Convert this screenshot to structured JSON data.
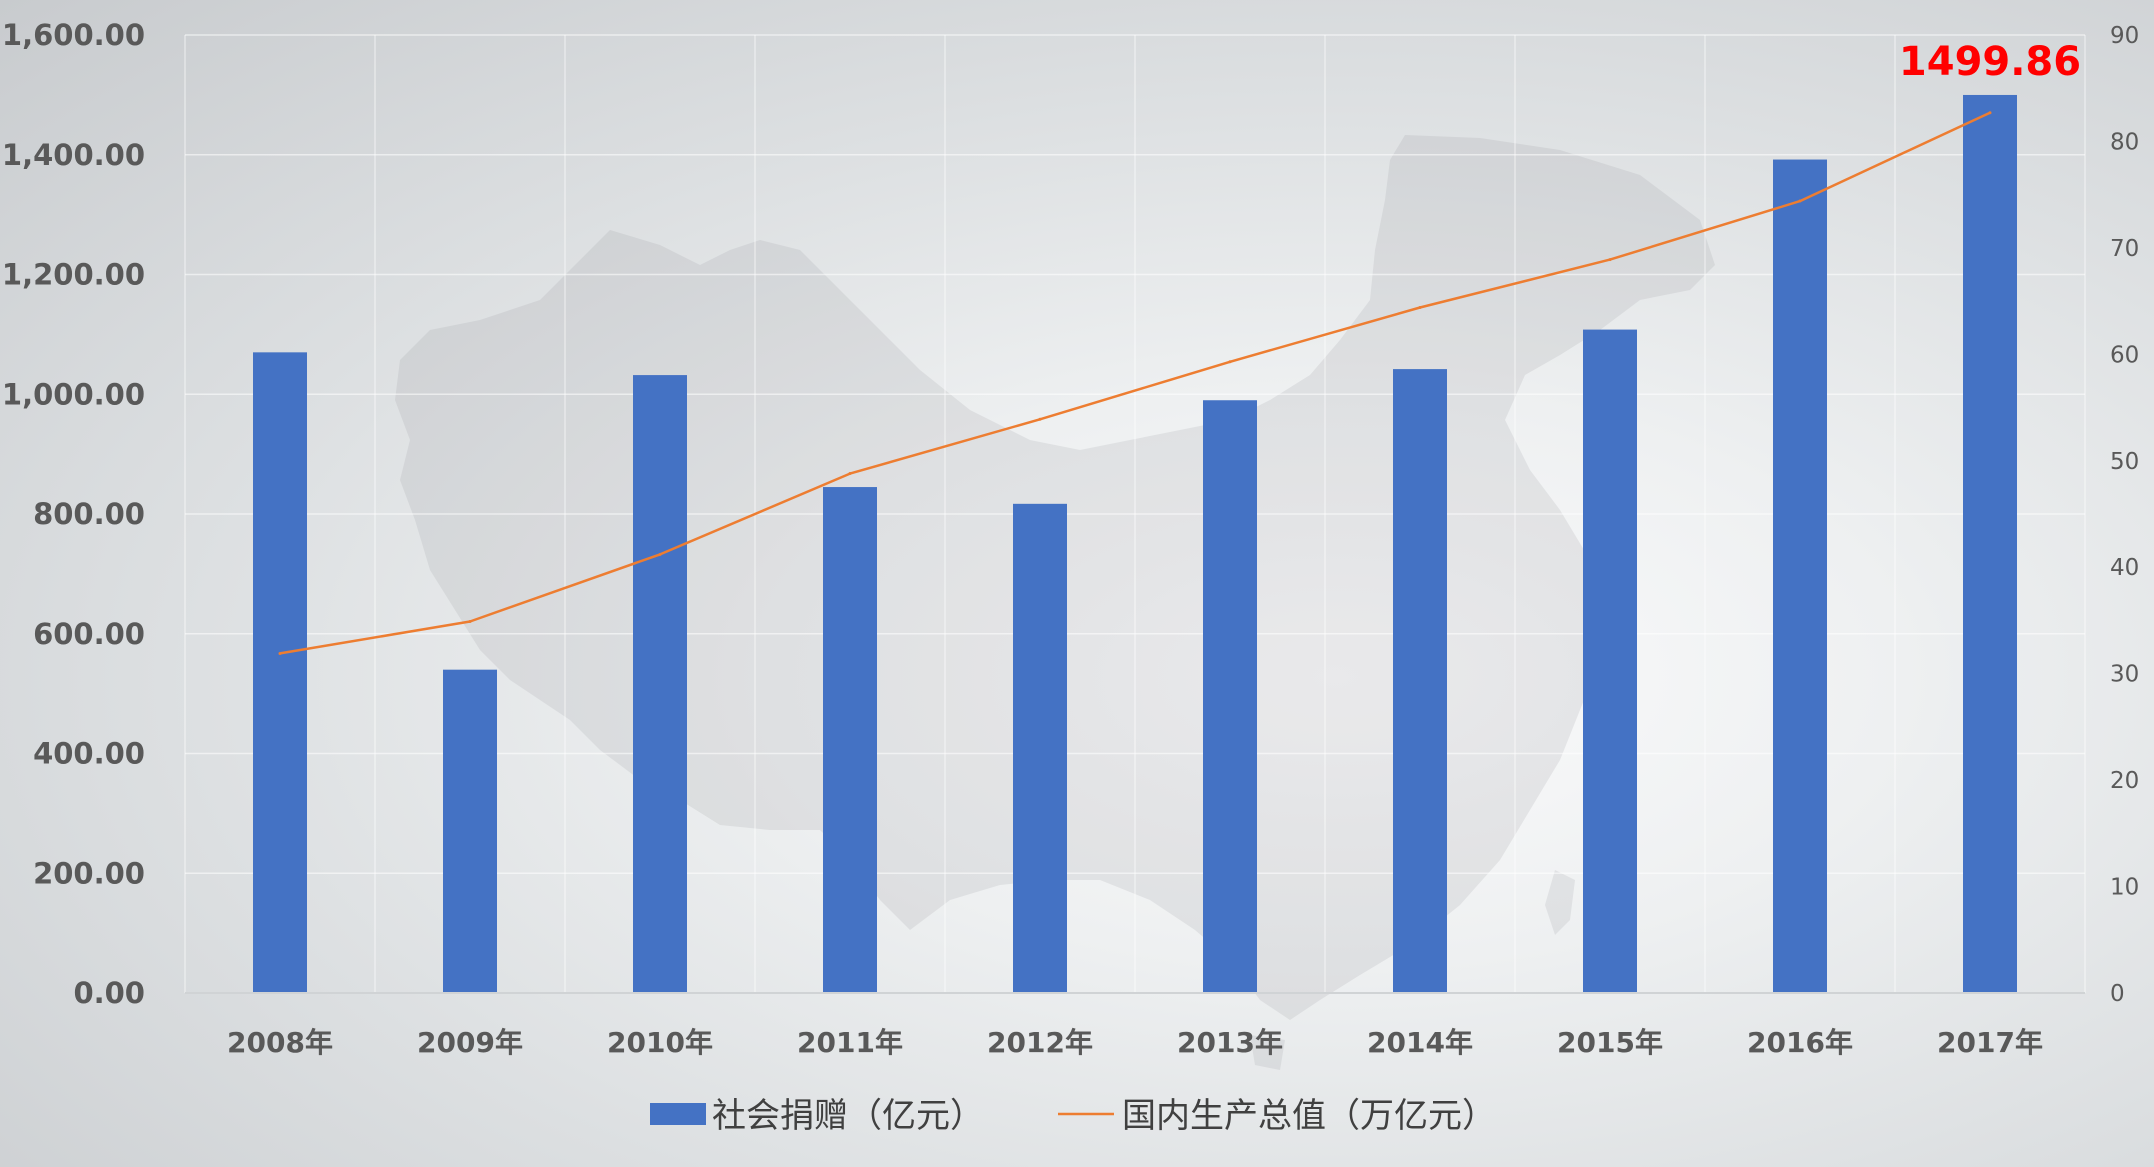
{
  "chart_data": {
    "type": "bar",
    "categories": [
      "2008年",
      "2009年",
      "2010年",
      "2011年",
      "2012年",
      "2013年",
      "2014年",
      "2015年",
      "2016年",
      "2017年"
    ],
    "series": [
      {
        "name": "社会捐赠（亿元）",
        "type": "bar",
        "axis": "left",
        "color": "#4472c4",
        "values": [
          1070,
          540,
          1032,
          845,
          817,
          990,
          1042,
          1108,
          1392,
          1499.86
        ]
      },
      {
        "name": "国内生产总值（万亿元）",
        "type": "line",
        "axis": "right",
        "color": "#ed7d31",
        "values": [
          31.9,
          34.9,
          41.2,
          48.8,
          53.9,
          59.3,
          64.4,
          68.9,
          74.4,
          82.7
        ]
      }
    ],
    "y_left": {
      "min": 0,
      "max": 1600,
      "ticks": [
        0,
        200,
        400,
        600,
        800,
        1000,
        1200,
        1400,
        1600
      ],
      "tick_labels": [
        "0.00",
        "200.00",
        "400.00",
        "600.00",
        "800.00",
        "1,000.00",
        "1,200.00",
        "1,400.00",
        "1,600.00"
      ]
    },
    "y_right": {
      "min": 0,
      "max": 90,
      "ticks": [
        0,
        10,
        20,
        30,
        40,
        50,
        60,
        70,
        80,
        90
      ],
      "tick_labels": [
        "0",
        "10",
        "20",
        "30",
        "40",
        "50",
        "60",
        "70",
        "80",
        "90"
      ]
    },
    "annotation": {
      "text": "1499.86",
      "category_index": 9,
      "color": "#ff0000"
    },
    "grid": true,
    "legend": {
      "position": "bottom",
      "items": [
        "社会捐赠（亿元）",
        "国内生产总值（万亿元）"
      ]
    }
  }
}
